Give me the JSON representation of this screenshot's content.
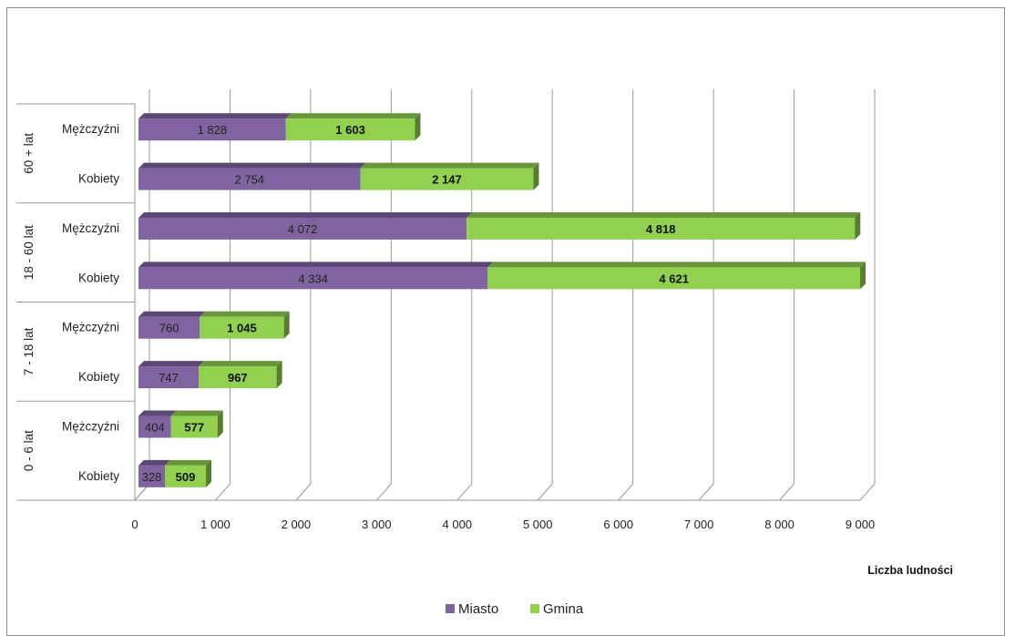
{
  "chart_data": {
    "type": "bar",
    "orientation": "horizontal",
    "stacked": true,
    "style": "3d",
    "xlabel": "Liczba ludności",
    "xlim": [
      0,
      9000
    ],
    "xticks": [
      "0",
      "1 000",
      "2 000",
      "3 000",
      "4 000",
      "5 000",
      "6 000",
      "7 000",
      "8 000",
      "9 000"
    ],
    "grid": true,
    "legend_position": "bottom",
    "groups": [
      {
        "label": "60 + lat",
        "categories": [
          "Mężczyźni",
          "Kobiety"
        ]
      },
      {
        "label": "18 - 60 lat",
        "categories": [
          "Mężczyźni",
          "Kobiety"
        ]
      },
      {
        "label": "7 - 18 lat",
        "categories": [
          "Mężczyźni",
          "Kobiety"
        ]
      },
      {
        "label": "0 - 6 lat",
        "categories": [
          "Mężczyźni",
          "Kobiety"
        ]
      }
    ],
    "series": [
      {
        "name": "Miasto",
        "color": "#8064a2",
        "values": [
          1828,
          2754,
          4072,
          4334,
          760,
          747,
          404,
          328
        ],
        "labels": [
          "1 828",
          "2 754",
          "4 072",
          "4 334",
          "760",
          "747",
          "404",
          "328"
        ]
      },
      {
        "name": "Gmina",
        "color": "#92d050",
        "values": [
          1603,
          2147,
          4818,
          4621,
          1045,
          967,
          577,
          509
        ],
        "labels": [
          "1 603",
          "2 147",
          "4 818",
          "4 621",
          "1 045",
          "967",
          "577",
          "509"
        ]
      }
    ]
  }
}
